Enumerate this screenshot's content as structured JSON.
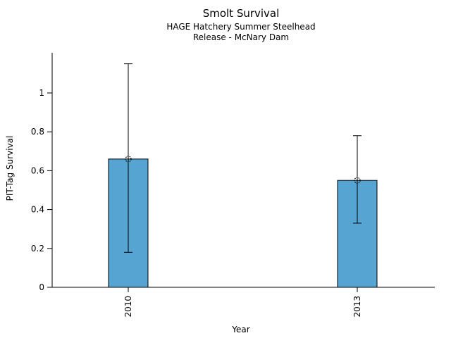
{
  "chart_data": {
    "type": "bar",
    "title": "Smolt Survival",
    "subtitle_line1": "HAGE Hatchery Summer Steelhead",
    "subtitle_line2": "Release - McNary Dam",
    "xlabel": "Year",
    "ylabel": "PIT-Tag Survival",
    "categories": [
      "2010",
      "2013"
    ],
    "values": [
      0.66,
      0.55
    ],
    "error_low": [
      0.18,
      0.33
    ],
    "error_high": [
      1.15,
      0.78
    ],
    "yticks": [
      0,
      0.2,
      0.4,
      0.6,
      0.8,
      1
    ],
    "ytick_labels": [
      "0",
      "0.2",
      "0.4",
      "0.6",
      "0.8",
      "1"
    ],
    "ylim": [
      0,
      1.21
    ],
    "grid": false,
    "legend": "none",
    "marker": "open-dashed-circle",
    "bar_color": "#55A4D2",
    "line_color": "#000000"
  }
}
